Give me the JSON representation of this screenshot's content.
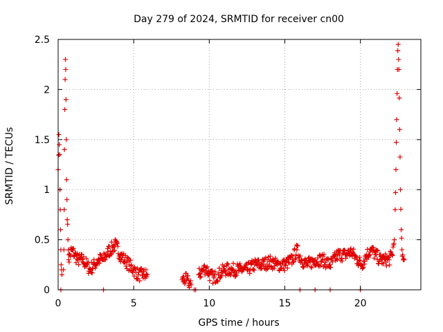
{
  "chart_data": {
    "type": "scatter",
    "title": "Day 279 of 2024, SRMTID for receiver cn00",
    "xlabel": "GPS time / hours",
    "ylabel": "SRMTID / TECUs",
    "xlim": [
      0,
      24
    ],
    "ylim": [
      0,
      2.5
    ],
    "x_ticks": [
      0,
      5,
      10,
      15,
      20
    ],
    "y_ticks": [
      0,
      0.5,
      1,
      1.5,
      2,
      2.5
    ],
    "x_tick_labels": [
      "0",
      "5",
      "10",
      "15",
      "20"
    ],
    "y_tick_labels": [
      "0",
      "0.5",
      "1",
      "1.5",
      "2",
      "2.5"
    ],
    "grid": true,
    "marker": "+",
    "color": "#e00000",
    "series": [
      {
        "name": "cn00",
        "segments": [
          [
            [
              0.0,
              1.2
            ],
            [
              0.05,
              1.55
            ],
            [
              0.08,
              1.45
            ],
            [
              0.1,
              1.35
            ],
            [
              0.12,
              1.0
            ],
            [
              0.14,
              0.8
            ],
            [
              0.16,
              0.6
            ],
            [
              0.18,
              0.4
            ],
            [
              0.2,
              0.25
            ],
            [
              0.22,
              0.2
            ],
            [
              0.25,
              0.15
            ]
          ],
          [
            [
              0.35,
              0.2
            ],
            [
              0.38,
              0.4
            ],
            [
              0.4,
              0.8
            ],
            [
              0.42,
              1.4
            ],
            [
              0.44,
              1.8
            ],
            [
              0.46,
              2.1
            ],
            [
              0.48,
              2.3
            ],
            [
              0.5,
              2.2
            ],
            [
              0.52,
              1.9
            ],
            [
              0.54,
              1.5
            ],
            [
              0.56,
              1.1
            ],
            [
              0.58,
              0.9
            ],
            [
              0.6,
              0.7
            ],
            [
              0.65,
              0.5
            ],
            [
              0.7,
              0.35
            ]
          ],
          [
            [
              0.7,
              0.3
            ],
            [
              0.9,
              0.4
            ],
            [
              1.1,
              0.35
            ],
            [
              1.3,
              0.3
            ],
            [
              1.6,
              0.3
            ],
            [
              1.9,
              0.25
            ],
            [
              2.1,
              0.2
            ],
            [
              2.4,
              0.25
            ],
            [
              2.7,
              0.3
            ],
            [
              3.0,
              0.3
            ],
            [
              3.3,
              0.38
            ],
            [
              3.6,
              0.42
            ],
            [
              3.8,
              0.45
            ],
            [
              4.1,
              0.35
            ],
            [
              4.4,
              0.3
            ],
            [
              4.7,
              0.25
            ],
            [
              5.0,
              0.2
            ],
            [
              5.3,
              0.15
            ],
            [
              5.6,
              0.15
            ],
            [
              5.9,
              0.15
            ]
          ],
          [
            [
              8.2,
              0.1
            ],
            [
              8.5,
              0.1
            ],
            [
              8.8,
              0.05
            ]
          ],
          [
            [
              9.3,
              0.15
            ],
            [
              9.6,
              0.2
            ],
            [
              9.8,
              0.22
            ],
            [
              10.0,
              0.15
            ],
            [
              10.3,
              0.12
            ],
            [
              10.6,
              0.15
            ],
            [
              11.0,
              0.2
            ],
            [
              11.5,
              0.2
            ],
            [
              12.0,
              0.2
            ],
            [
              12.5,
              0.2
            ],
            [
              13.0,
              0.25
            ],
            [
              13.5,
              0.25
            ],
            [
              14.0,
              0.28
            ],
            [
              14.5,
              0.25
            ],
            [
              15.0,
              0.25
            ],
            [
              15.5,
              0.3
            ],
            [
              15.8,
              0.4
            ],
            [
              16.1,
              0.3
            ],
            [
              16.5,
              0.25
            ],
            [
              17.0,
              0.3
            ],
            [
              17.5,
              0.3
            ],
            [
              18.0,
              0.25
            ],
            [
              18.5,
              0.35
            ],
            [
              19.0,
              0.35
            ],
            [
              19.4,
              0.38
            ],
            [
              19.8,
              0.3
            ],
            [
              20.1,
              0.25
            ],
            [
              20.4,
              0.35
            ],
            [
              20.7,
              0.4
            ],
            [
              21.0,
              0.35
            ],
            [
              21.3,
              0.3
            ],
            [
              21.6,
              0.3
            ],
            [
              21.9,
              0.3
            ],
            [
              22.1,
              0.35
            ],
            [
              22.25,
              0.5
            ]
          ],
          [
            [
              22.3,
              0.8
            ],
            [
              22.35,
              1.2
            ],
            [
              22.4,
              1.7
            ],
            [
              22.45,
              2.2
            ],
            [
              22.5,
              2.45
            ],
            [
              22.55,
              2.2
            ],
            [
              22.6,
              1.6
            ],
            [
              22.65,
              1.0
            ],
            [
              22.7,
              0.6
            ],
            [
              22.75,
              0.4
            ],
            [
              22.8,
              0.35
            ],
            [
              22.9,
              0.3
            ]
          ]
        ]
      }
    ]
  }
}
